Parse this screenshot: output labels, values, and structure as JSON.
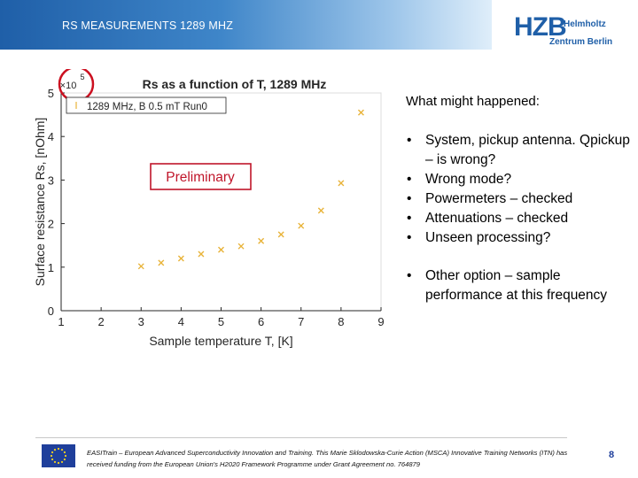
{
  "header": {
    "title": "RS MEASUREMENTS 1289 MHZ"
  },
  "logo": {
    "main": "HZB",
    "line1": "Helmholtz",
    "line2": "Zentrum Berlin"
  },
  "chart_data": {
    "type": "scatter",
    "title": "Rs as a function of T, 1289 MHz",
    "xlabel": "Sample temperature T, [K]",
    "ylabel": "Surface resistance Rs, [nOhm]",
    "exponent_label": "×10",
    "exponent_power": "5",
    "xlim": [
      1,
      9
    ],
    "ylim": [
      0,
      5
    ],
    "xticks": [
      "1",
      "2",
      "3",
      "4",
      "5",
      "6",
      "7",
      "8",
      "9"
    ],
    "yticks": [
      "0",
      "1",
      "2",
      "3",
      "4",
      "5"
    ],
    "grid": false,
    "legend_position": "top-left",
    "series": [
      {
        "name": "1289 MHz, B 0.5 mT Run0",
        "color": "#e8b339",
        "marker": "x",
        "x": [
          3.0,
          3.5,
          4.0,
          4.5,
          5.0,
          5.5,
          6.0,
          6.5,
          7.0,
          7.5,
          8.0,
          8.5
        ],
        "y": [
          1.02,
          1.1,
          1.2,
          1.3,
          1.4,
          1.48,
          1.6,
          1.75,
          1.95,
          2.3,
          2.93,
          4.55
        ]
      }
    ],
    "annotation": "Preliminary",
    "annotation_color": "#c0152a"
  },
  "right_panel": {
    "title": "What might happened:",
    "bullets": [
      "System, pickup antenna. Qpickup – is wrong?",
      "Wrong mode?",
      "Powermeters – checked",
      "Attenuations – checked",
      "Unseen processing?",
      "Other option – sample performance at this frequency"
    ]
  },
  "footer": {
    "text": "EASITrain – European Advanced Superconductivity Innovation and Training. This Marie Sklodowska-Curie Action (MSCA) Innovative Training Networks (ITN) has received funding from the European Union's H2020 Framework Programme under Grant Agreement no. 764879",
    "page_number": "8"
  }
}
